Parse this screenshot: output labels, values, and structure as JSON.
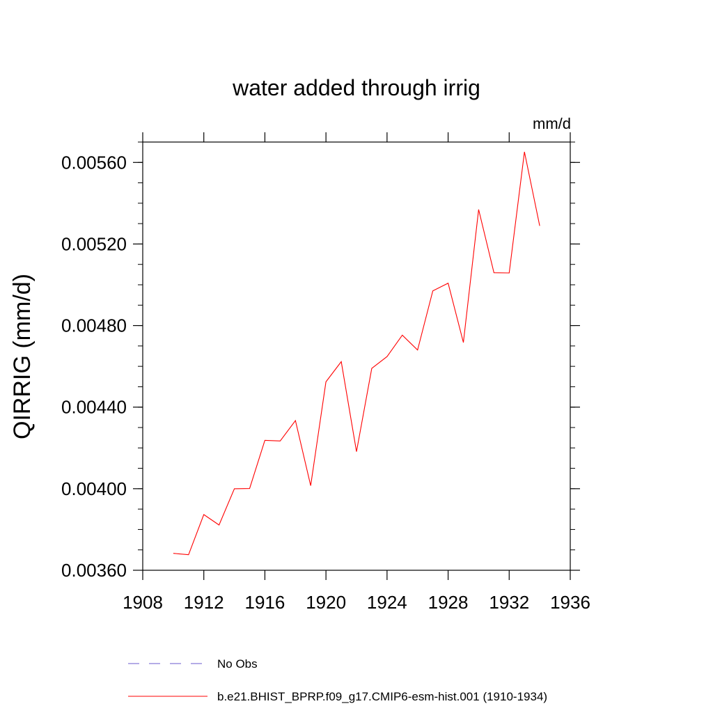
{
  "chart_data": {
    "type": "line",
    "title": "water added through irrig",
    "units_label": "mm/d",
    "xlabel": "",
    "ylabel": "QIRRIG  (mm/d)",
    "xlim": [
      1908,
      1936
    ],
    "ylim": [
      0.0036,
      0.0057
    ],
    "x_ticks": [
      "1908",
      "1912",
      "1916",
      "1920",
      "1924",
      "1928",
      "1932",
      "1936"
    ],
    "x_tick_values": [
      1908,
      1912,
      1916,
      1920,
      1924,
      1928,
      1932,
      1936
    ],
    "y_ticks": [
      "0.00360",
      "0.00400",
      "0.00440",
      "0.00480",
      "0.00520",
      "0.00560"
    ],
    "y_tick_values": [
      0.0036,
      0.004,
      0.0044,
      0.0048,
      0.0052,
      0.0056
    ],
    "series": [
      {
        "name": "b.e21.BHIST_BPRP.f09_g17.CMIP6-esm-hist.001 (1910-1934)",
        "color": "#ff0000",
        "style": "solid",
        "x": [
          1910,
          1911,
          1912,
          1913,
          1914,
          1915,
          1916,
          1917,
          1918,
          1919,
          1920,
          1921,
          1922,
          1923,
          1924,
          1925,
          1926,
          1927,
          1928,
          1929,
          1930,
          1931,
          1932,
          1933,
          1934
        ],
        "values": [
          0.003683,
          0.003676,
          0.003873,
          0.003822,
          0.004,
          0.004001,
          0.004237,
          0.004234,
          0.004334,
          0.004015,
          0.004524,
          0.004623,
          0.004182,
          0.00459,
          0.004648,
          0.004753,
          0.00468,
          0.00497,
          0.005008,
          0.004717,
          0.005369,
          0.005059,
          0.005058,
          0.005652,
          0.005289
        ]
      }
    ],
    "legend": [
      {
        "label": "No Obs",
        "style": "dashed",
        "color": "#6a5acd"
      },
      {
        "label": "b.e21.BHIST_BPRP.f09_g17.CMIP6-esm-hist.001 (1910-1934)",
        "style": "solid",
        "color": "#ff0000"
      }
    ],
    "legend_position": "bottom"
  }
}
